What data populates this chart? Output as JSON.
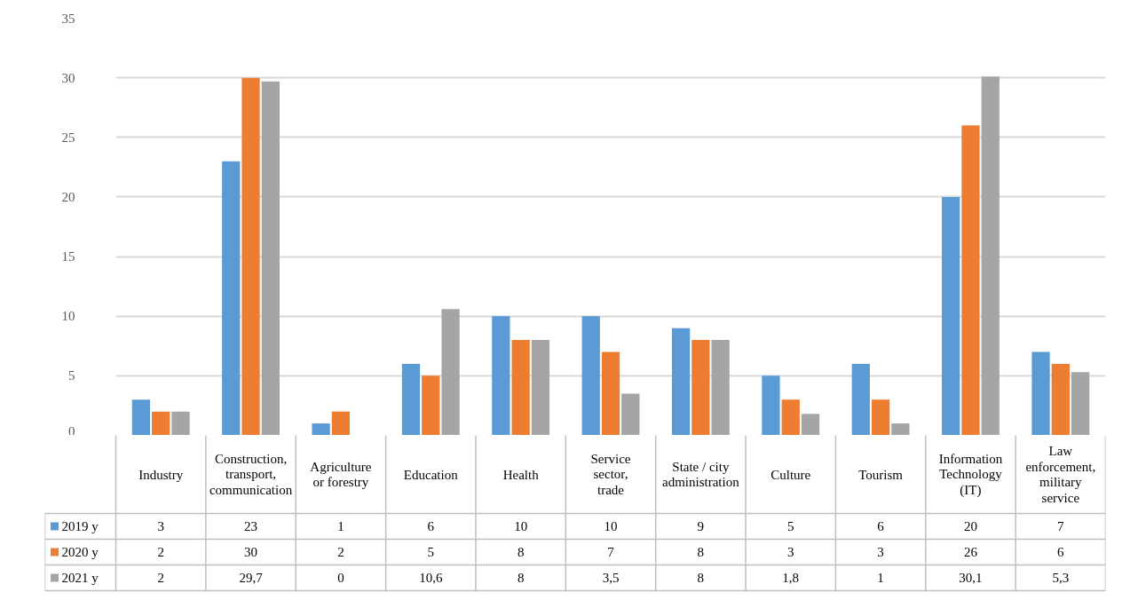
{
  "chart_data": {
    "type": "bar",
    "categories": [
      "Industry",
      "Construction, transport, communication",
      "Agriculture or forestry",
      "Education",
      "Health",
      "Service sector, trade",
      "State / city administration",
      "Culture",
      "Tourism",
      "Information Technology (IT)",
      "Law enforcement, military service"
    ],
    "series": [
      {
        "name": "2019 y",
        "color": "#5b9bd5",
        "values": [
          3,
          23,
          1,
          6,
          10,
          10,
          9,
          5,
          6,
          20,
          7
        ],
        "value_labels": [
          "3",
          "23",
          "1",
          "6",
          "10",
          "10",
          "9",
          "5",
          "6",
          "20",
          "7"
        ]
      },
      {
        "name": "2020 y",
        "color": "#ed7d31",
        "values": [
          2,
          30,
          2,
          5,
          8,
          7,
          8,
          3,
          3,
          26,
          6
        ],
        "value_labels": [
          "2",
          "30",
          "2",
          "5",
          "8",
          "7",
          "8",
          "3",
          "3",
          "26",
          "6"
        ]
      },
      {
        "name": "2021 y",
        "color": "#a5a5a5",
        "values": [
          2,
          29.7,
          0,
          10.6,
          8,
          3.5,
          8,
          1.8,
          1,
          30.1,
          5.3
        ],
        "value_labels": [
          "2",
          "29,7",
          "0",
          "10,6",
          "8",
          "3,5",
          "8",
          "1,8",
          "1",
          "30,1",
          "5,3"
        ]
      }
    ],
    "ylim": [
      0,
      35
    ],
    "yticks": [
      0,
      5,
      10,
      15,
      20,
      25,
      30,
      35
    ],
    "grid": "y",
    "legend": "bottom"
  }
}
